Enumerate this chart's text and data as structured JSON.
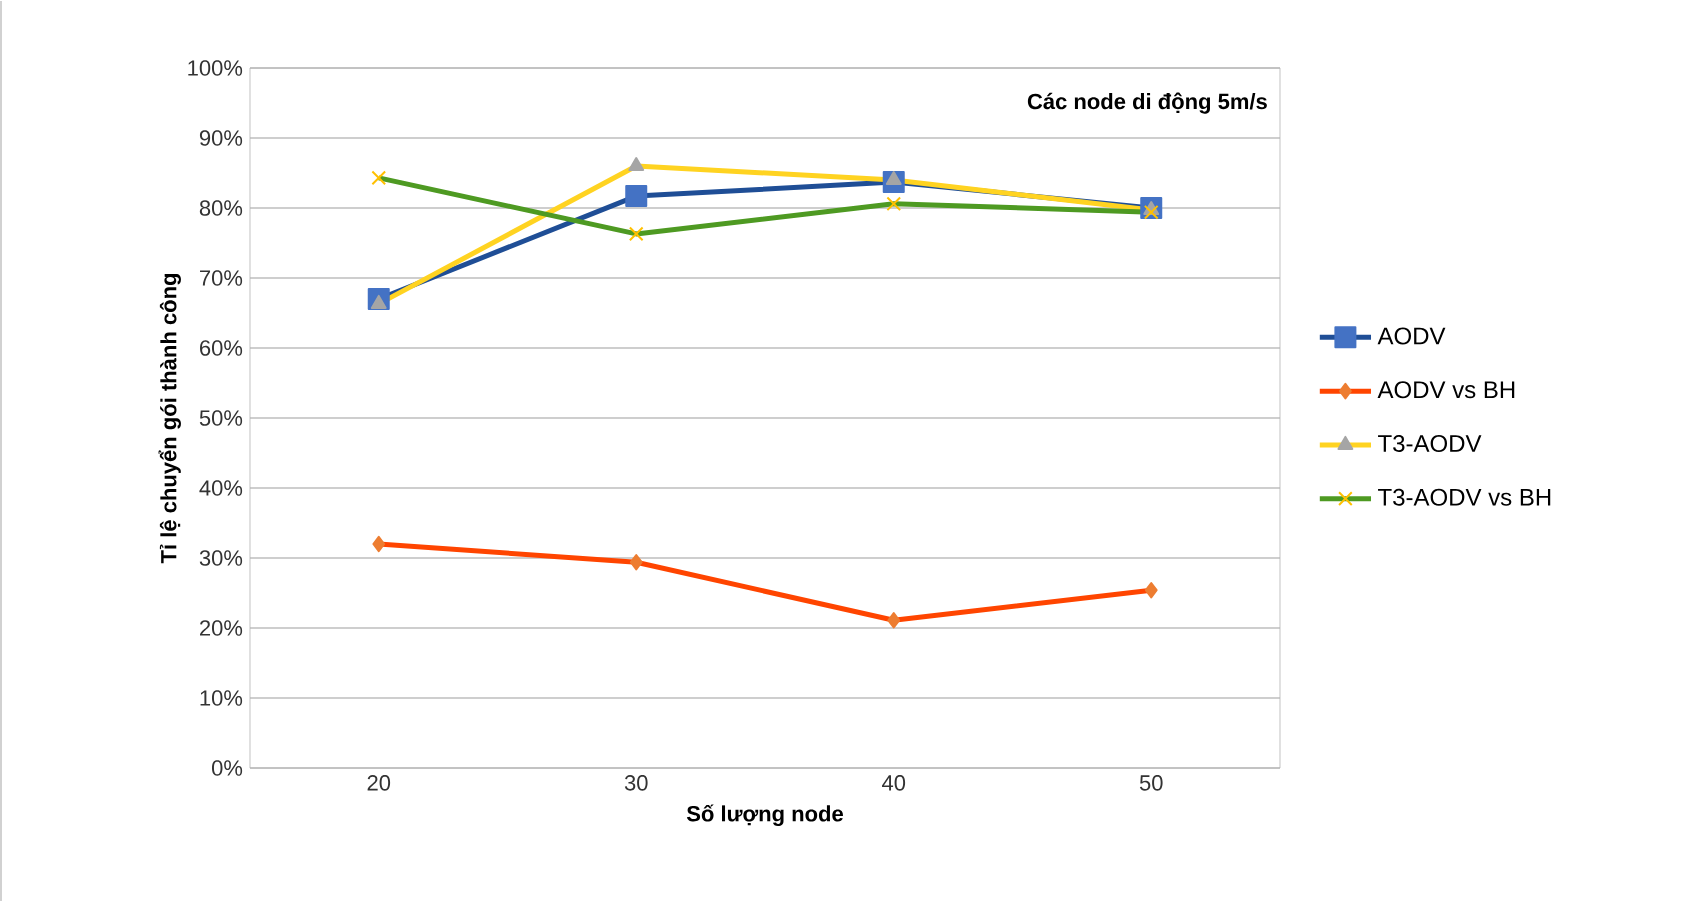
{
  "chart_data": {
    "type": "line",
    "xlabel": "Số lượng node",
    "ylabel": "Tỉ lệ chuyển gói thành công",
    "annotations": [
      "Các node di động 5m/s"
    ],
    "categories": [
      "20",
      "30",
      "40",
      "50"
    ],
    "series": [
      {
        "name": "AODV",
        "color": "#1f4e96",
        "colors": [
          "#4472c4",
          "#4472c4",
          "#4472c4",
          "#4472c4"
        ],
        "marker": "square",
        "values": [
          67,
          81.7,
          83.7,
          80
        ]
      },
      {
        "name": "AODV vs BH",
        "color": "#ff4500",
        "colors": [
          "#ed7d31",
          "#ed7d31",
          "#ed7d31",
          "#ed7d31"
        ],
        "marker": "diamond",
        "values": [
          32,
          29.4,
          21.1,
          25.4
        ]
      },
      {
        "name": "T3-AODV",
        "color": "#ffd321",
        "colors": [
          "#a5a5a5",
          "#a5a5a5",
          "#a5a5a5",
          "#a5a5a5"
        ],
        "marker": "triangle",
        "values": [
          66.3,
          86,
          84,
          79.7
        ]
      },
      {
        "name": "T3-AODV vs BH",
        "color": "#4e9a22",
        "colors": [
          "#ffc000",
          "#ffc000",
          "#ffc000",
          "#ffc000"
        ],
        "marker": "cross",
        "values": [
          84.3,
          76.3,
          80.6,
          79.4
        ]
      }
    ],
    "ylim": [
      0,
      100
    ],
    "yticks": [
      {
        "value": 0,
        "label": "0%"
      },
      {
        "value": 10,
        "label": "10%"
      },
      {
        "value": 20,
        "label": "20%"
      },
      {
        "value": 30,
        "label": "30%"
      },
      {
        "value": 40,
        "label": "40%"
      },
      {
        "value": 50,
        "label": "50%"
      },
      {
        "value": 60,
        "label": "60%"
      },
      {
        "value": 70,
        "label": "70%"
      },
      {
        "value": 80,
        "label": "80%"
      },
      {
        "value": 90,
        "label": "90%"
      },
      {
        "value": 100,
        "label": "100%"
      }
    ],
    "grid": "y",
    "legend": "right",
    "line_style": "solid"
  }
}
